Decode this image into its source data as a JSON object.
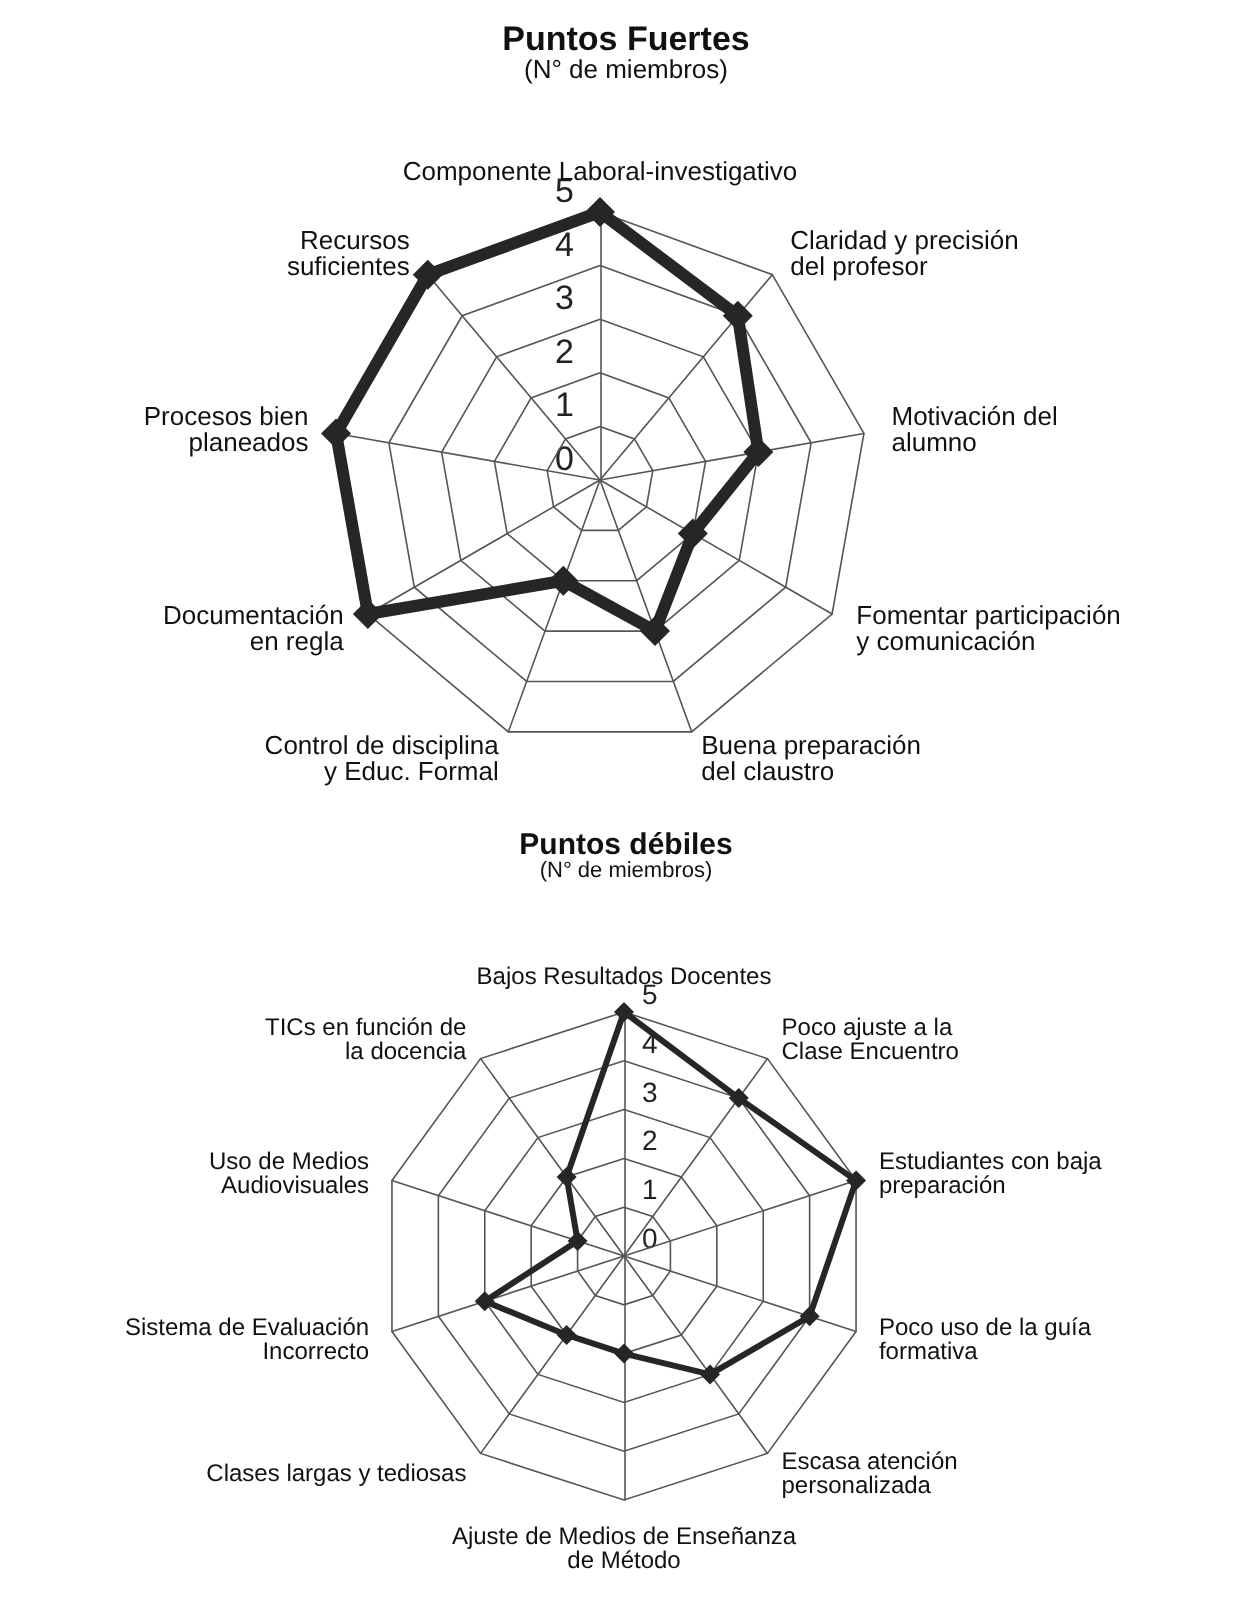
{
  "chart_data": [
    {
      "type": "radar",
      "title": "Puntos Fuertes",
      "subtitle": "(N° de miembros)",
      "categories": [
        "Componente Laboral-investigativo",
        "Claridad y precisión\ndel profesor",
        "Motivación del\nalumno",
        "Fomentar participación\ny comunicación",
        "Buena preparación\ndel claustro",
        "Control de disciplina\ny Educ. Formal",
        "Documentación\nen regla",
        "Procesos bien\nplaneados",
        "Recursos\nsuficientes"
      ],
      "series": [
        {
          "color": "#262626",
          "values": [
            5,
            4,
            3,
            2,
            3,
            2,
            5,
            5,
            5
          ]
        }
      ],
      "ylim": [
        0,
        5
      ],
      "yticks": [
        0,
        1,
        2,
        3,
        4,
        5
      ],
      "grid": true,
      "marker": "diamond"
    },
    {
      "type": "radar",
      "title": "Puntos débiles",
      "subtitle": "(N° de miembros)",
      "categories": [
        "Bajos Resultados Docentes",
        "Poco ajuste a la Clase Encuentro",
        "Estudiantes con baja\npreparación",
        "Poco uso de la guía\nformativa",
        "Escasa atención personalizada",
        "Ajuste de Medios de Enseñanza\nde Método",
        "Clases largas y tediosas",
        "Sistema de Evaluación\nIncorrecto",
        "Uso de Medios\nAudiovisuales",
        "TICs en función de\nla docencia"
      ],
      "series": [
        {
          "color": "#262626",
          "values": [
            5,
            4,
            5,
            4,
            3,
            2,
            2,
            3,
            1,
            2
          ]
        }
      ],
      "ylim": [
        0,
        5
      ],
      "yticks": [
        0,
        1,
        2,
        3,
        4,
        5
      ],
      "grid": true,
      "marker": "diamond"
    }
  ]
}
